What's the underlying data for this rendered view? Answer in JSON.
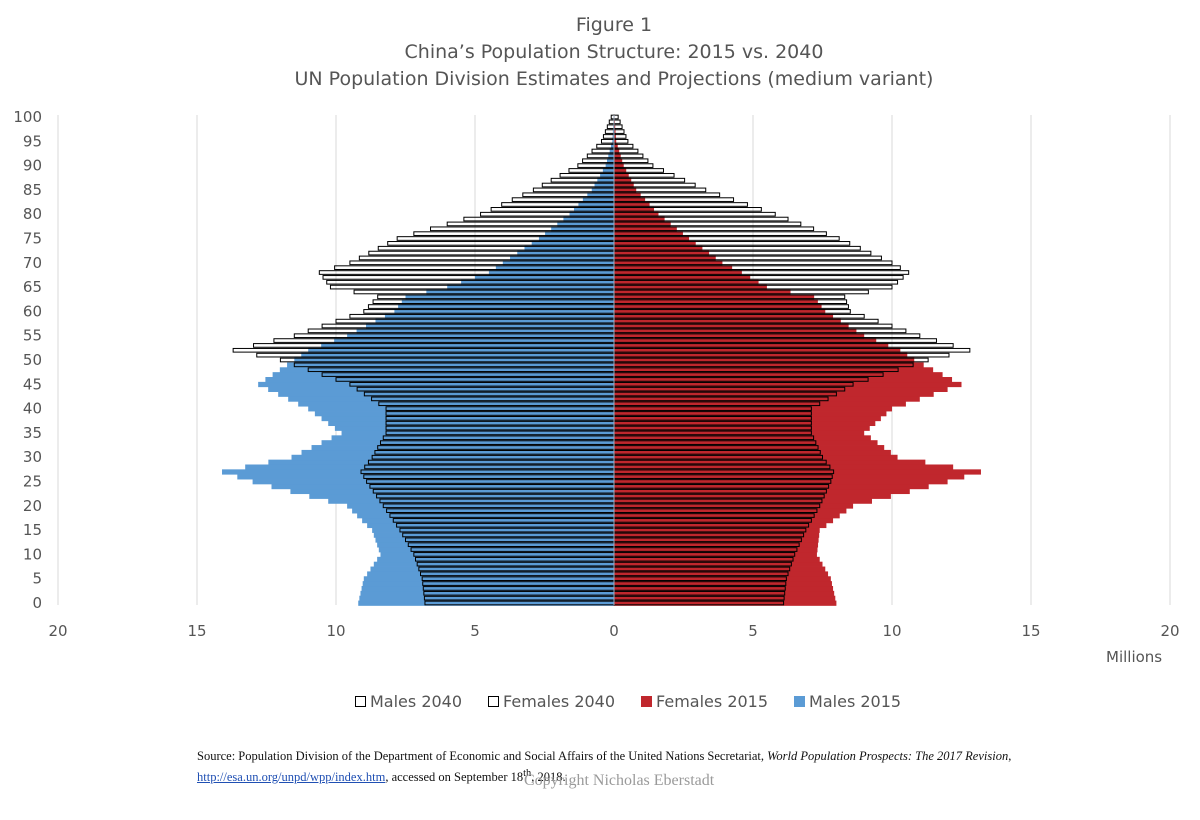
{
  "figure": {
    "label": "Figure 1",
    "title": "China’s Population Structure: 2015 vs. 2040",
    "subtitle": "UN Population Division  Estimates and Projections (medium variant)"
  },
  "axis": {
    "x_unit_label": "Millions",
    "x_tick_labels": [
      "20",
      "15",
      "10",
      "5",
      "0",
      "5",
      "10",
      "15",
      "20"
    ],
    "y_tick_labels": [
      "0",
      "5",
      "10",
      "15",
      "20",
      "25",
      "30",
      "35",
      "40",
      "45",
      "50",
      "55",
      "60",
      "65",
      "70",
      "75",
      "80",
      "85",
      "90",
      "95",
      "100"
    ]
  },
  "legend": [
    {
      "label": "Males 2040",
      "fill": "#ffffff",
      "stroke": "#000000"
    },
    {
      "label": "Females 2040",
      "fill": "#ffffff",
      "stroke": "#000000"
    },
    {
      "label": "Females 2015",
      "fill": "#c0272d",
      "stroke": "#c0272d"
    },
    {
      "label": "Males 2015",
      "fill": "#5b9bd5",
      "stroke": "#5b9bd5"
    }
  ],
  "source": {
    "prefix": "Source: Population Division of the Department of Economic and Social Affairs of the United Nations Secretariat,",
    "publication": "World Population Prospects: The 2017 Revision",
    "url": "http://esa.un.org/unpd/wpp/index.htm",
    "accessed_text": ", accessed on September 18",
    "accessed_sup": "th",
    "accessed_year": ", 2018."
  },
  "copyright": "Copyright Nicholas Eberstadt",
  "chart_data": {
    "type": "bar",
    "orientation": "horizontal",
    "x_unit": "Millions",
    "xlim": [
      -20,
      20
    ],
    "ylim": [
      0,
      100
    ],
    "age_key_ages": [
      0,
      5,
      10,
      15,
      20,
      25,
      27,
      30,
      35,
      40,
      45,
      50,
      52,
      55,
      60,
      63,
      65,
      68,
      70,
      75,
      80,
      85,
      90,
      95,
      100
    ],
    "series": [
      {
        "name": "Males 2015",
        "color": "#5b9bd5",
        "values": [
          9.2,
          9.0,
          8.4,
          8.7,
          9.6,
          13.0,
          14.1,
          11.6,
          9.8,
          11.0,
          12.8,
          11.5,
          11.0,
          9.6,
          7.9,
          7.5,
          6.0,
          4.5,
          4.0,
          2.7,
          1.6,
          0.8,
          0.3,
          0.06,
          0.01
        ]
      },
      {
        "name": "Females 2015",
        "color": "#c0272d",
        "values": [
          8.0,
          7.8,
          7.3,
          7.4,
          8.6,
          12.0,
          13.2,
          10.2,
          9.0,
          10.0,
          12.5,
          10.8,
          10.3,
          9.0,
          7.6,
          7.2,
          5.5,
          4.6,
          3.9,
          2.7,
          1.6,
          0.8,
          0.35,
          0.08,
          0.02
        ]
      },
      {
        "name": "Males 2040",
        "color": "#ffffff",
        "values": [
          6.8,
          6.9,
          7.2,
          7.7,
          8.3,
          8.9,
          9.1,
          8.7,
          8.2,
          8.2,
          9.5,
          12.0,
          13.7,
          11.5,
          9.0,
          8.5,
          10.2,
          10.6,
          9.5,
          7.8,
          4.8,
          2.9,
          1.3,
          0.45,
          0.1
        ]
      },
      {
        "name": "Females 2040",
        "color": "#ffffff",
        "values": [
          6.1,
          6.2,
          6.5,
          6.9,
          7.4,
          7.8,
          7.9,
          7.5,
          7.1,
          7.1,
          8.6,
          11.3,
          12.8,
          11.0,
          8.5,
          8.3,
          10.0,
          10.6,
          10.0,
          8.1,
          5.8,
          3.3,
          1.4,
          0.5,
          0.15
        ]
      }
    ]
  }
}
